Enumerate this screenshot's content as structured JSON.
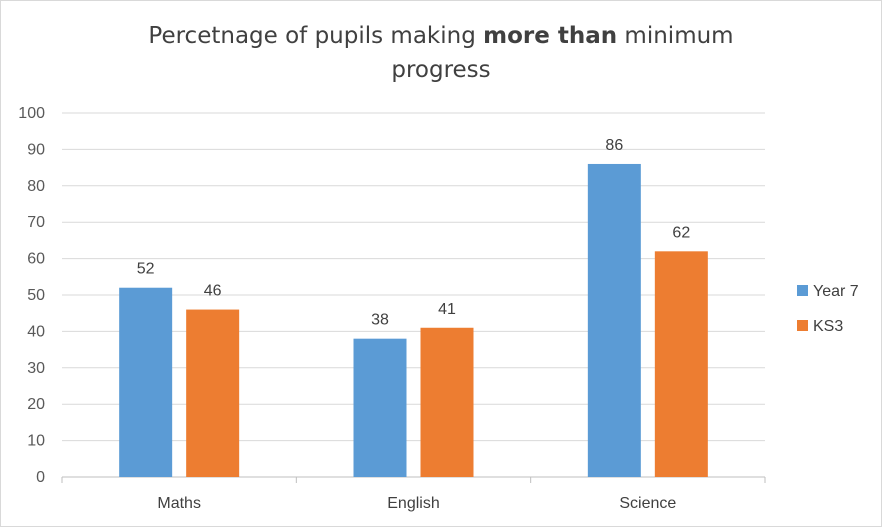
{
  "chart_data": {
    "type": "bar",
    "title_pre": "Percetnage of pupils making ",
    "title_bold": "more than",
    "title_post": " minimum progress",
    "categories": [
      "Maths",
      "English",
      "Science"
    ],
    "series": [
      {
        "name": "Year 7",
        "values": [
          52,
          38,
          86
        ],
        "color": "#5b9bd5"
      },
      {
        "name": "KS3",
        "values": [
          46,
          41,
          62
        ],
        "color": "#ed7d31"
      }
    ],
    "ylim": [
      0,
      100
    ],
    "yticks": [
      0,
      10,
      20,
      30,
      40,
      50,
      60,
      70,
      80,
      90,
      100
    ],
    "grid": true,
    "legend": "right",
    "data_labels": true
  }
}
